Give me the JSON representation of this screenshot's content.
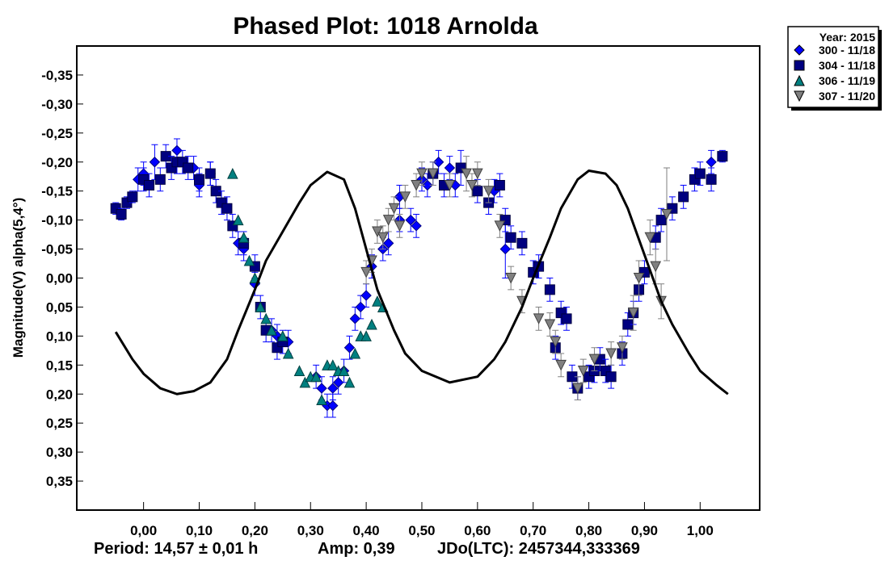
{
  "chart_data": {
    "type": "scatter",
    "title": "Phased Plot: 1018 Arnolda",
    "xlabel": "",
    "ylabel": "Magnitude(V) alpha(5,4°)",
    "xlim": [
      -0.12,
      1.107
    ],
    "ylim": [
      -0.4,
      0.4
    ],
    "y_inverted": true,
    "x_ticks": [
      0.0,
      0.1,
      0.2,
      0.3,
      0.4,
      0.5,
      0.6,
      0.7,
      0.8,
      0.9,
      1.0
    ],
    "x_tick_labels": [
      "0,00",
      "0,10",
      "0,20",
      "0,30",
      "0,40",
      "0,50",
      "0,60",
      "0,70",
      "0,80",
      "0,90",
      "1,00"
    ],
    "y_ticks": [
      -0.35,
      -0.3,
      -0.25,
      -0.2,
      -0.15,
      -0.1,
      -0.05,
      0.0,
      0.05,
      0.1,
      0.15,
      0.2,
      0.25,
      0.3,
      0.35
    ],
    "y_tick_labels": [
      "-0,35",
      "-0,30",
      "-0,25",
      "-0,20",
      "-0,15",
      "-0,10",
      "-0,05",
      "0,00",
      "0,05",
      "0,10",
      "0,15",
      "0,20",
      "0,25",
      "0,30",
      "0,35"
    ],
    "grid": false,
    "legend": {
      "placement": "outside-top-right",
      "title": "Year: 2015",
      "entries": [
        "300 - 11/18",
        "304 - 11/18",
        "306 - 11/19",
        "307 - 11/20"
      ]
    },
    "footer": {
      "period": "Period: 14,57 ± 0,01 h",
      "amp": "Amp: 0,39",
      "jdo": "JDo(LTC): 2457344,333369"
    },
    "fit_curve": [
      [
        -0.05,
        0.093
      ],
      [
        -0.02,
        0.14
      ],
      [
        0.0,
        0.165
      ],
      [
        0.03,
        0.19
      ],
      [
        0.06,
        0.2
      ],
      [
        0.09,
        0.195
      ],
      [
        0.12,
        0.18
      ],
      [
        0.15,
        0.14
      ],
      [
        0.17,
        0.09
      ],
      [
        0.2,
        0.02
      ],
      [
        0.22,
        -0.03
      ],
      [
        0.25,
        -0.08
      ],
      [
        0.28,
        -0.13
      ],
      [
        0.3,
        -0.16
      ],
      [
        0.33,
        -0.183
      ],
      [
        0.36,
        -0.17
      ],
      [
        0.38,
        -0.12
      ],
      [
        0.4,
        -0.05
      ],
      [
        0.42,
        0.02
      ],
      [
        0.45,
        0.09
      ],
      [
        0.47,
        0.13
      ],
      [
        0.5,
        0.16
      ],
      [
        0.55,
        0.18
      ],
      [
        0.6,
        0.17
      ],
      [
        0.63,
        0.14
      ],
      [
        0.65,
        0.11
      ],
      [
        0.68,
        0.05
      ],
      [
        0.7,
        0.0
      ],
      [
        0.73,
        -0.07
      ],
      [
        0.75,
        -0.12
      ],
      [
        0.78,
        -0.17
      ],
      [
        0.8,
        -0.185
      ],
      [
        0.83,
        -0.18
      ],
      [
        0.85,
        -0.16
      ],
      [
        0.87,
        -0.12
      ],
      [
        0.9,
        -0.04
      ],
      [
        0.93,
        0.04
      ],
      [
        0.95,
        0.08
      ],
      [
        0.98,
        0.13
      ],
      [
        1.0,
        0.16
      ],
      [
        1.03,
        0.185
      ],
      [
        1.05,
        0.2
      ]
    ],
    "series": [
      {
        "name": "300 - 11/18",
        "marker": "diamond",
        "color": "#0000ff",
        "edge": "#000080",
        "points": [
          [
            -0.01,
            -0.17,
            0.02
          ],
          [
            0.0,
            -0.18,
            0.02
          ],
          [
            0.02,
            -0.2,
            0.03
          ],
          [
            0.06,
            -0.22,
            0.02
          ],
          [
            0.09,
            -0.19,
            0.02
          ],
          [
            0.1,
            -0.16,
            0.02
          ],
          [
            0.12,
            -0.18,
            0.02
          ],
          [
            0.17,
            -0.06,
            0.02
          ],
          [
            0.18,
            -0.05,
            0.02
          ],
          [
            0.2,
            0.01,
            0.02
          ],
          [
            0.23,
            0.09,
            0.02
          ],
          [
            0.24,
            0.1,
            0.02
          ],
          [
            0.26,
            0.11,
            0.02
          ],
          [
            0.31,
            0.17,
            0.02
          ],
          [
            0.32,
            0.19,
            0.02
          ],
          [
            0.33,
            0.22,
            0.02
          ],
          [
            0.34,
            0.19,
            0.02
          ],
          [
            0.34,
            0.22,
            0.02
          ],
          [
            0.35,
            0.18,
            0.02
          ],
          [
            0.36,
            0.16,
            0.02
          ],
          [
            0.37,
            0.12,
            0.02
          ],
          [
            0.38,
            0.07,
            0.02
          ],
          [
            0.39,
            0.05,
            0.02
          ],
          [
            0.4,
            0.03,
            0.02
          ],
          [
            0.41,
            -0.02,
            0.02
          ],
          [
            0.43,
            -0.05,
            0.02
          ],
          [
            0.44,
            -0.06,
            0.02
          ],
          [
            0.46,
            -0.1,
            0.02
          ],
          [
            0.46,
            -0.14,
            0.02
          ],
          [
            0.48,
            -0.1,
            0.02
          ],
          [
            0.49,
            -0.09,
            0.02
          ],
          [
            0.5,
            -0.17,
            0.02
          ],
          [
            0.51,
            -0.16,
            0.02
          ],
          [
            0.53,
            -0.2,
            0.02
          ],
          [
            0.55,
            -0.19,
            0.02
          ],
          [
            0.56,
            -0.16,
            0.02
          ],
          [
            0.63,
            -0.15,
            0.02
          ],
          [
            0.65,
            -0.05,
            0.05
          ],
          [
            1.02,
            -0.2,
            0.02
          ]
        ]
      },
      {
        "name": "304 - 11/18",
        "marker": "square",
        "color": "#000080",
        "edge": "#000040",
        "points": [
          [
            -0.05,
            -0.12,
            0.01
          ],
          [
            -0.04,
            -0.11,
            0.01
          ],
          [
            -0.03,
            -0.13,
            0.01
          ],
          [
            -0.02,
            -0.14,
            0.01
          ],
          [
            0.0,
            -0.17,
            0.02
          ],
          [
            0.01,
            -0.16,
            0.02
          ],
          [
            0.03,
            -0.17,
            0.02
          ],
          [
            0.04,
            -0.21,
            0.02
          ],
          [
            0.05,
            -0.19,
            0.02
          ],
          [
            0.06,
            -0.2,
            0.02
          ],
          [
            0.07,
            -0.2,
            0.02
          ],
          [
            0.08,
            -0.19,
            0.02
          ],
          [
            0.1,
            -0.17,
            0.02
          ],
          [
            0.12,
            -0.18,
            0.02
          ],
          [
            0.13,
            -0.15,
            0.02
          ],
          [
            0.14,
            -0.13,
            0.02
          ],
          [
            0.15,
            -0.12,
            0.02
          ],
          [
            0.16,
            -0.09,
            0.02
          ],
          [
            0.18,
            -0.06,
            0.02
          ],
          [
            0.2,
            -0.02,
            0.02
          ],
          [
            0.21,
            0.05,
            0.02
          ],
          [
            0.22,
            0.09,
            0.02
          ],
          [
            0.24,
            0.12,
            0.02
          ],
          [
            0.25,
            0.11,
            0.02
          ],
          [
            0.52,
            -0.18,
            0.02
          ],
          [
            0.54,
            -0.16,
            0.02
          ],
          [
            0.57,
            -0.19,
            0.03
          ],
          [
            0.6,
            -0.15,
            0.02
          ],
          [
            0.62,
            -0.13,
            0.02
          ],
          [
            0.64,
            -0.16,
            0.02
          ],
          [
            0.65,
            -0.1,
            0.02
          ],
          [
            0.66,
            -0.07,
            0.02
          ],
          [
            0.68,
            -0.06,
            0.02
          ],
          [
            0.7,
            -0.01,
            0.02
          ],
          [
            0.71,
            -0.02,
            0.02
          ],
          [
            0.73,
            0.02,
            0.02
          ],
          [
            0.75,
            0.06,
            0.02
          ],
          [
            0.76,
            0.07,
            0.02
          ],
          [
            0.74,
            0.12,
            0.02
          ],
          [
            0.77,
            0.17,
            0.02
          ],
          [
            0.78,
            0.19,
            0.02
          ],
          [
            0.8,
            0.17,
            0.02
          ],
          [
            0.81,
            0.16,
            0.02
          ],
          [
            0.82,
            0.14,
            0.02
          ],
          [
            0.83,
            0.16,
            0.02
          ],
          [
            0.84,
            0.17,
            0.02
          ],
          [
            0.86,
            0.13,
            0.02
          ],
          [
            0.87,
            0.08,
            0.02
          ],
          [
            0.88,
            0.06,
            0.02
          ],
          [
            0.89,
            0.02,
            0.02
          ],
          [
            0.9,
            -0.01,
            0.02
          ],
          [
            0.92,
            -0.07,
            0.02
          ],
          [
            0.93,
            -0.1,
            0.02
          ],
          [
            0.95,
            -0.12,
            0.02
          ],
          [
            0.97,
            -0.14,
            0.02
          ],
          [
            0.99,
            -0.17,
            0.02
          ],
          [
            1.0,
            -0.18,
            0.02
          ],
          [
            1.02,
            -0.17,
            0.02
          ],
          [
            1.04,
            -0.21,
            0.01
          ]
        ]
      },
      {
        "name": "306 - 11/19",
        "marker": "triangle-up",
        "color": "#008080",
        "edge": "#004040",
        "points": [
          [
            0.16,
            -0.18,
            0.0
          ],
          [
            0.17,
            -0.1,
            0.0
          ],
          [
            0.18,
            -0.07,
            0.0
          ],
          [
            0.19,
            -0.03,
            0.0
          ],
          [
            0.2,
            0.0,
            0.0
          ],
          [
            0.21,
            0.05,
            0.0
          ],
          [
            0.22,
            0.07,
            0.0
          ],
          [
            0.23,
            0.09,
            0.0
          ],
          [
            0.25,
            0.1,
            0.0
          ],
          [
            0.26,
            0.13,
            0.0
          ],
          [
            0.28,
            0.16,
            0.0
          ],
          [
            0.29,
            0.18,
            0.0
          ],
          [
            0.3,
            0.17,
            0.0
          ],
          [
            0.31,
            0.17,
            0.0
          ],
          [
            0.32,
            0.21,
            0.0
          ],
          [
            0.33,
            0.15,
            0.0
          ],
          [
            0.34,
            0.15,
            0.0
          ],
          [
            0.35,
            0.16,
            0.0
          ],
          [
            0.36,
            0.16,
            0.0
          ],
          [
            0.37,
            0.18,
            0.0
          ],
          [
            0.38,
            0.13,
            0.0
          ],
          [
            0.39,
            0.1,
            0.0
          ],
          [
            0.4,
            0.1,
            0.0
          ],
          [
            0.41,
            0.08,
            0.0
          ],
          [
            0.42,
            0.04,
            0.0
          ],
          [
            0.43,
            0.05,
            0.0
          ]
        ]
      },
      {
        "name": "307 - 11/20",
        "marker": "triangle-down",
        "color": "#808080",
        "edge": "#404040",
        "points": [
          [
            0.4,
            -0.01,
            0.02
          ],
          [
            0.41,
            -0.03,
            0.02
          ],
          [
            0.42,
            -0.08,
            0.02
          ],
          [
            0.43,
            -0.07,
            0.02
          ],
          [
            0.44,
            -0.1,
            0.02
          ],
          [
            0.45,
            -0.12,
            0.02
          ],
          [
            0.46,
            -0.09,
            0.02
          ],
          [
            0.47,
            -0.14,
            0.02
          ],
          [
            0.49,
            -0.16,
            0.02
          ],
          [
            0.5,
            -0.18,
            0.02
          ],
          [
            0.52,
            -0.18,
            0.02
          ],
          [
            0.55,
            -0.16,
            0.02
          ],
          [
            0.58,
            -0.18,
            0.03
          ],
          [
            0.59,
            -0.16,
            0.02
          ],
          [
            0.6,
            -0.18,
            0.02
          ],
          [
            0.62,
            -0.15,
            0.02
          ],
          [
            0.64,
            -0.09,
            0.02
          ],
          [
            0.66,
            0.0,
            0.02
          ],
          [
            0.68,
            0.04,
            0.02
          ],
          [
            0.71,
            0.07,
            0.02
          ],
          [
            0.73,
            0.08,
            0.02
          ],
          [
            0.74,
            0.11,
            0.02
          ],
          [
            0.75,
            0.15,
            0.02
          ],
          [
            0.78,
            0.19,
            0.02
          ],
          [
            0.79,
            0.16,
            0.02
          ],
          [
            0.81,
            0.14,
            0.02
          ],
          [
            0.84,
            0.13,
            0.02
          ],
          [
            0.86,
            0.12,
            0.02
          ],
          [
            0.88,
            0.06,
            0.03
          ],
          [
            0.89,
            0.0,
            0.03
          ],
          [
            0.91,
            -0.07,
            0.03
          ],
          [
            0.92,
            -0.02,
            0.03
          ],
          [
            0.94,
            -0.11,
            0.08
          ],
          [
            0.93,
            0.04,
            0.03
          ]
        ]
      }
    ]
  }
}
